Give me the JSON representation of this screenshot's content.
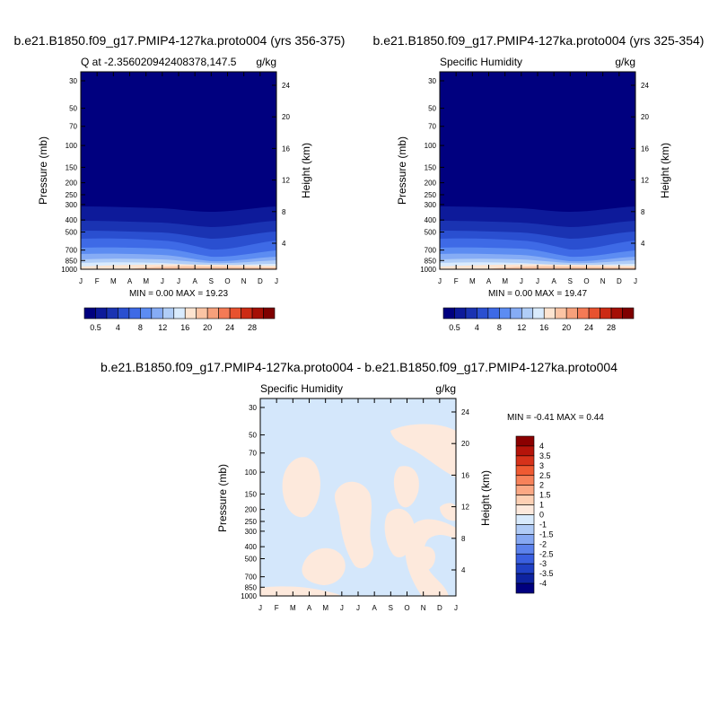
{
  "chart_data": [
    {
      "type": "contour",
      "title": "b.e21.B1850.f09_g17.PMIP4-127ka.proto004 (yrs 356-375)",
      "left_string": "Q at -2.356020942408378,147.5",
      "right_string": "g/kg",
      "ylabel": "Pressure (mb)",
      "ylabel_right": "Height (km)",
      "x_ticks": [
        "J",
        "F",
        "M",
        "A",
        "M",
        "J",
        "J",
        "A",
        "S",
        "O",
        "N",
        "D",
        "J"
      ],
      "p_ticks": [
        "30",
        "50",
        "70",
        "100",
        "150",
        "200",
        "250",
        "300",
        "400",
        "500",
        "700",
        "850",
        "1000"
      ],
      "height_ticks": [
        "4",
        "8",
        "12",
        "16",
        "20",
        "24"
      ],
      "min_max": "MIN =   0.00 MAX =  19.23",
      "colorbar": {
        "labels": [
          "0.5",
          "4",
          "8",
          "12",
          "16",
          "20",
          "24",
          "28"
        ],
        "colors": [
          "#00007f",
          "#0d1a9a",
          "#1a33b2",
          "#2a4fd0",
          "#3e6ae6",
          "#5c8cf2",
          "#86acf5",
          "#b0cdf7",
          "#d9ebfd",
          "#fde4d0",
          "#fbc4a4",
          "#f7a07b",
          "#f47a55",
          "#e8522f",
          "#cc2b14",
          "#a50f05",
          "#7f0000"
        ]
      }
    },
    {
      "type": "contour",
      "title": "b.e21.B1850.f09_g17.PMIP4-127ka.proto004 (yrs 325-354)",
      "left_string": "Specific Humidity",
      "right_string": "g/kg",
      "ylabel": "Pressure (mb)",
      "ylabel_right": "Height (km)",
      "x_ticks": [
        "J",
        "F",
        "M",
        "A",
        "M",
        "J",
        "J",
        "A",
        "S",
        "O",
        "N",
        "D",
        "J"
      ],
      "p_ticks": [
        "30",
        "50",
        "70",
        "100",
        "150",
        "200",
        "250",
        "300",
        "400",
        "500",
        "700",
        "850",
        "1000"
      ],
      "height_ticks": [
        "4",
        "8",
        "12",
        "16",
        "20",
        "24"
      ],
      "min_max": "MIN =   0.00 MAX =  19.47",
      "colorbar": {
        "labels": [
          "0.5",
          "4",
          "8",
          "12",
          "16",
          "20",
          "24",
          "28"
        ],
        "colors": [
          "#00007f",
          "#0d1a9a",
          "#1a33b2",
          "#2a4fd0",
          "#3e6ae6",
          "#5c8cf2",
          "#86acf5",
          "#b0cdf7",
          "#d9ebfd",
          "#fde4d0",
          "#fbc4a4",
          "#f7a07b",
          "#f47a55",
          "#e8522f",
          "#cc2b14",
          "#a50f05",
          "#7f0000"
        ]
      }
    },
    {
      "type": "contour",
      "title": "b.e21.B1850.f09_g17.PMIP4-127ka.proto004 - b.e21.B1850.f09_g17.PMIP4-127ka.proto004",
      "left_string": "Specific Humidity",
      "right_string": "g/kg",
      "ylabel": "Pressure (mb)",
      "ylabel_right": "Height (km)",
      "x_ticks": [
        "J",
        "F",
        "M",
        "A",
        "M",
        "J",
        "J",
        "A",
        "S",
        "O",
        "N",
        "D",
        "J"
      ],
      "p_ticks": [
        "30",
        "50",
        "70",
        "100",
        "150",
        "200",
        "250",
        "300",
        "400",
        "500",
        "700",
        "850",
        "1000"
      ],
      "height_ticks": [
        "4",
        "8",
        "12",
        "16",
        "20",
        "24"
      ],
      "min_max": "MIN =  -0.41 MAX =   0.44",
      "colorbar": {
        "labels": [
          "4",
          "3.5",
          "3",
          "2.5",
          "2",
          "1.5",
          "1",
          "0",
          "-1",
          "-1.5",
          "-2",
          "-2.5",
          "-3",
          "-3.5",
          "-4"
        ],
        "colors": [
          "#8b0000",
          "#b5140a",
          "#d6321a",
          "#ef5a32",
          "#f7825a",
          "#fba884",
          "#fdd0b4",
          "#fde9dc",
          "#d8eafc",
          "#b0cbf6",
          "#86a8f2",
          "#5c82ec",
          "#3a5fe0",
          "#2040c4",
          "#0e23a0",
          "#00007f"
        ]
      },
      "field_colors": {
        "negative": "#d4e7fb",
        "positive": "#fde9dc"
      }
    }
  ]
}
